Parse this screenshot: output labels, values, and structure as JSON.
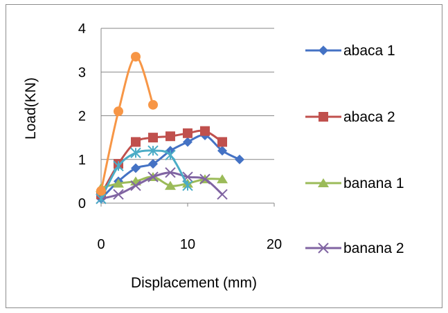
{
  "chart_data": {
    "type": "line",
    "title": "",
    "xlabel": "Displacement (mm)",
    "ylabel": "Load(KN)",
    "xlim": [
      0,
      20
    ],
    "ylim": [
      0,
      4
    ],
    "xticks": [
      "0",
      "10",
      "20"
    ],
    "yticks": [
      "0",
      "1",
      "2",
      "3",
      "4"
    ],
    "grid": "horizontal",
    "legend_position": "right",
    "series": [
      {
        "name": "abaca 1",
        "color": "#4472C4",
        "marker": "diamond-marker",
        "x": [
          0,
          2,
          4,
          6,
          8,
          10,
          12,
          14,
          16
        ],
        "y": [
          0.1,
          0.5,
          0.8,
          0.9,
          1.2,
          1.4,
          1.55,
          1.2,
          1.0
        ]
      },
      {
        "name": "abaca  2",
        "color": "#C0504D",
        "marker": "square-marker",
        "x": [
          0,
          2,
          4,
          6,
          8,
          10,
          12,
          14
        ],
        "y": [
          0.2,
          0.9,
          1.4,
          1.5,
          1.53,
          1.6,
          1.65,
          1.4
        ]
      },
      {
        "name": "banana 1",
        "color": "#9BBB59",
        "marker": "triangle-marker",
        "x": [
          0,
          2,
          4,
          6,
          8,
          10,
          12,
          14
        ],
        "y": [
          0.35,
          0.45,
          0.5,
          0.6,
          0.4,
          0.45,
          0.55,
          0.55
        ]
      },
      {
        "name": "banana 2",
        "color": "#8064A2",
        "marker": "x-marker",
        "x": [
          0,
          2,
          4,
          6,
          8,
          10,
          12,
          14
        ],
        "y": [
          0.1,
          0.2,
          0.4,
          0.6,
          0.7,
          0.6,
          0.55,
          0.2
        ]
      },
      {
        "name": "",
        "color": "#4BACC6",
        "marker": "asterisk-marker",
        "x": [
          0,
          2,
          4,
          6,
          8,
          10
        ],
        "y": [
          0.1,
          0.85,
          1.15,
          1.2,
          1.1,
          0.4
        ]
      },
      {
        "name": "",
        "color": "#F79646",
        "marker": "circle-marker",
        "x": [
          0,
          2,
          4,
          6
        ],
        "y": [
          0.28,
          2.1,
          3.35,
          2.25
        ]
      }
    ]
  }
}
